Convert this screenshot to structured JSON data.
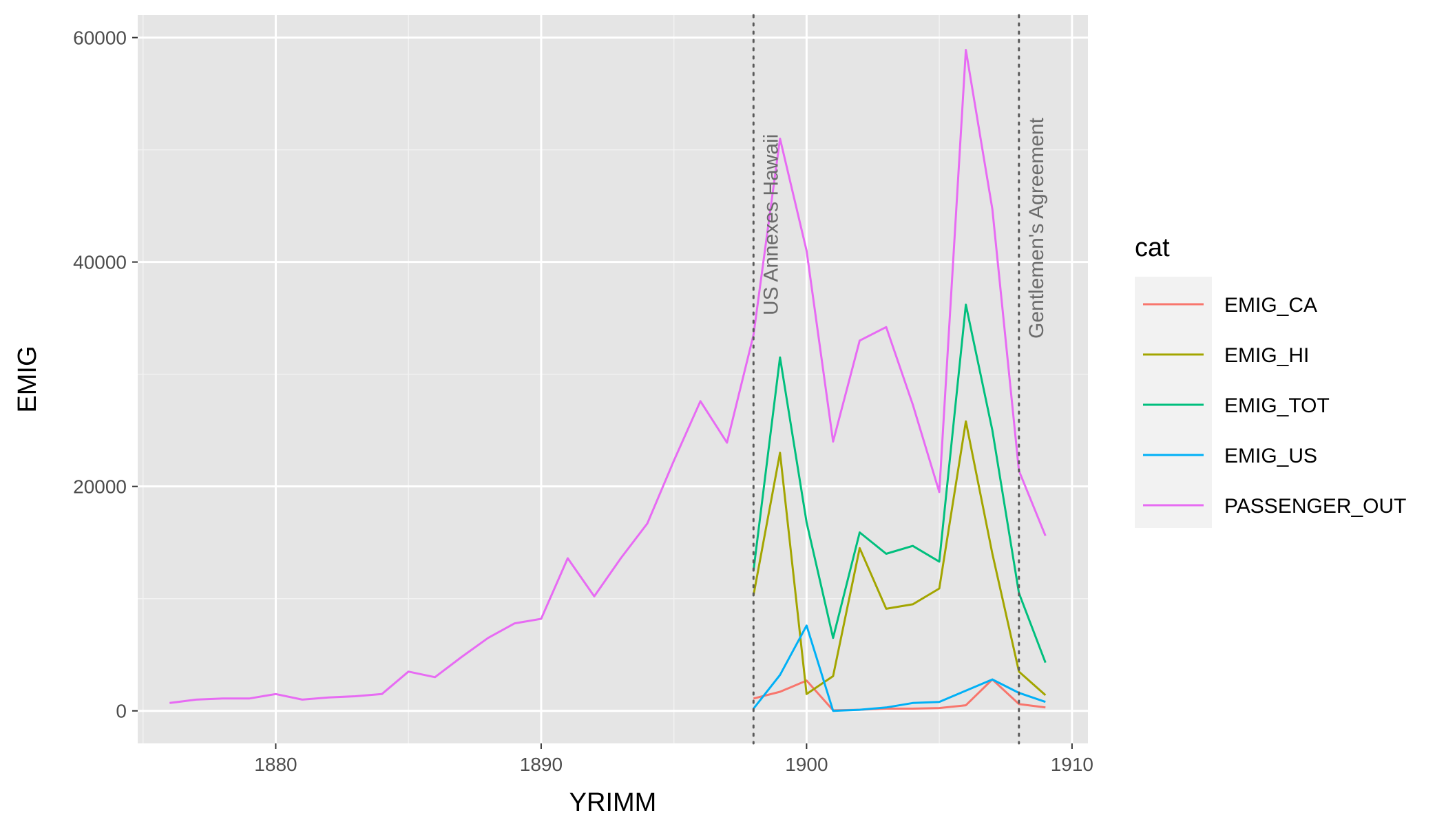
{
  "chart_data": {
    "type": "line",
    "xlabel": "YRIMM",
    "ylabel": "EMIG",
    "xlim": [
      1874.8,
      1910.6
    ],
    "ylim": [
      -2900,
      62000
    ],
    "x_ticks": [
      1880,
      1890,
      1900,
      1910
    ],
    "y_ticks": [
      0,
      20000,
      40000,
      60000
    ],
    "x_tick_labels": [
      "1880",
      "1890",
      "1900",
      "1910"
    ],
    "y_tick_labels": [
      "0",
      "20000",
      "40000",
      "60000"
    ],
    "grid": true,
    "legend": {
      "title": "cat",
      "position": "right"
    },
    "annotations": [
      {
        "x": 1898,
        "label": "US Annexes Hawaii",
        "linestyle": "dotted"
      },
      {
        "x": 1908,
        "label": "Gentlemen's Agreement",
        "linestyle": "dotted"
      }
    ],
    "series": [
      {
        "name": "EMIG_CA",
        "color": "#F8766D",
        "x": [
          1898,
          1899,
          1900,
          1901,
          1902,
          1903,
          1904,
          1905,
          1906,
          1907,
          1908,
          1909
        ],
        "values": [
          1100,
          1700,
          2700,
          50,
          100,
          200,
          200,
          250,
          500,
          2800,
          600,
          300
        ]
      },
      {
        "name": "EMIG_HI",
        "color": "#A3A500",
        "x": [
          1898,
          1899,
          1900,
          1901,
          1902,
          1903,
          1904,
          1905,
          1906,
          1907,
          1908,
          1909
        ],
        "values": [
          10300,
          23000,
          1500,
          3100,
          14500,
          9100,
          9500,
          10900,
          25800,
          14000,
          3500,
          1400
        ]
      },
      {
        "name": "EMIG_TOT",
        "color": "#00BF7D",
        "x": [
          1898,
          1899,
          1900,
          1901,
          1902,
          1903,
          1904,
          1905,
          1906,
          1907,
          1908,
          1909
        ],
        "values": [
          12500,
          31500,
          16800,
          6500,
          15900,
          14000,
          14700,
          13300,
          36200,
          25000,
          10500,
          4300
        ]
      },
      {
        "name": "EMIG_US",
        "color": "#00B0F6",
        "x": [
          1898,
          1899,
          1900,
          1901,
          1902,
          1903,
          1904,
          1905,
          1906,
          1907,
          1908,
          1909
        ],
        "values": [
          200,
          3200,
          7600,
          0,
          100,
          300,
          700,
          800,
          1800,
          2800,
          1600,
          800
        ]
      },
      {
        "name": "PASSENGER_OUT",
        "color": "#E76BF3",
        "x": [
          1876,
          1877,
          1878,
          1879,
          1880,
          1881,
          1882,
          1883,
          1884,
          1885,
          1886,
          1887,
          1888,
          1889,
          1890,
          1891,
          1892,
          1893,
          1894,
          1895,
          1896,
          1897,
          1898,
          1899,
          1900,
          1901,
          1902,
          1903,
          1904,
          1905,
          1906,
          1907,
          1908,
          1909
        ],
        "values": [
          700,
          1000,
          1100,
          1100,
          1500,
          1000,
          1200,
          1300,
          1500,
          3500,
          3000,
          4800,
          6500,
          7800,
          8200,
          13600,
          10200,
          13600,
          16700,
          22300,
          27600,
          23900,
          33500,
          51000,
          41000,
          24000,
          33000,
          34200,
          27300,
          19500,
          58900,
          44700,
          21400,
          15600
        ]
      }
    ]
  }
}
